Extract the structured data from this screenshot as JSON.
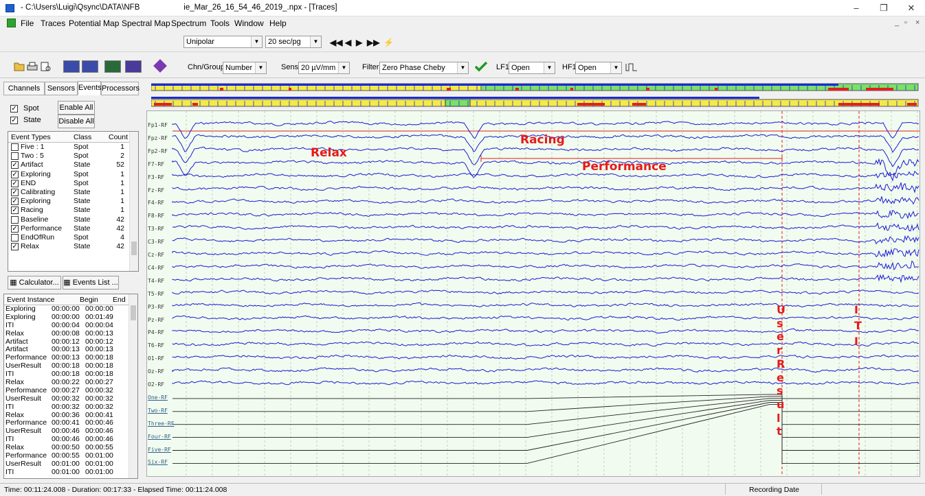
{
  "window": {
    "title": "- C:\\Users\\Luigi\\Qsync\\DATA\\NFB                    ie_Mar_26_16_54_46_2019_.npx - [Traces]",
    "controls": [
      "–",
      "❐",
      "✕"
    ]
  },
  "menu": {
    "items": [
      "File",
      "Traces",
      "Potential Map",
      "Spectral Map",
      "Spectrum",
      "Tools",
      "Window",
      "Help"
    ],
    "mdi_controls": [
      "_",
      "▫",
      "×"
    ]
  },
  "toolbar1": {
    "montage": "Unipolar",
    "page_speed": "20 sec/pg",
    "nav_buttons": [
      "◀◀",
      "◀",
      "▶",
      "▶▶",
      "⚡"
    ]
  },
  "toolbar2": {
    "chn_group_label": "Chn/Group",
    "chn_group_value": "Number",
    "sens_label": "Sens",
    "sens_value": "20 µV/mm",
    "filter_label": "Filter",
    "filter_value": "Zero Phase Cheby",
    "lf1_label": "LF1",
    "lf1_value": "Open",
    "hf1_label": "HF1",
    "hf1_value": "Open"
  },
  "panel": {
    "tabs": [
      "Channels",
      "Sensors",
      "Events",
      "Processors"
    ],
    "active_tab": "Events",
    "spot_label": "Spot",
    "state_label": "State",
    "enable_all": "Enable All",
    "disable_all": "Disable All",
    "event_types_headers": [
      "Event Types",
      "Class",
      "Count"
    ],
    "event_types": [
      {
        "name": "Five : 1",
        "cls": "Spot",
        "count": "1",
        "checked": false
      },
      {
        "name": "Two : 5",
        "cls": "Spot",
        "count": "2",
        "checked": false
      },
      {
        "name": "Artifact",
        "cls": "State",
        "count": "52",
        "checked": true
      },
      {
        "name": "Exploring",
        "cls": "Spot",
        "count": "1",
        "checked": true
      },
      {
        "name": "END",
        "cls": "Spot",
        "count": "1",
        "checked": true
      },
      {
        "name": "Calibrating",
        "cls": "State",
        "count": "1",
        "checked": true
      },
      {
        "name": "Exploring",
        "cls": "State",
        "count": "1",
        "checked": true
      },
      {
        "name": "Racing",
        "cls": "State",
        "count": "1",
        "checked": true
      },
      {
        "name": "Baseline",
        "cls": "State",
        "count": "42",
        "checked": false
      },
      {
        "name": "Performance",
        "cls": "State",
        "count": "42",
        "checked": true
      },
      {
        "name": "EndOfRun",
        "cls": "Spot",
        "count": "4",
        "checked": false
      },
      {
        "name": "Relax",
        "cls": "State",
        "count": "42",
        "checked": true
      }
    ],
    "calculator": "Calculator...",
    "events_list": "Events List ...",
    "instance_headers": [
      "Event Instance",
      "Begin",
      "End"
    ],
    "instances": [
      [
        "Exploring",
        "00:00:00",
        "00:00:00"
      ],
      [
        "Exploring",
        "00:00:00",
        "00:01:49"
      ],
      [
        "ITI",
        "00:00:04",
        "00:00:04"
      ],
      [
        "Relax",
        "00:00:08",
        "00:00:13"
      ],
      [
        "Artifact",
        "00:00:12",
        "00:00:12"
      ],
      [
        "Artifact",
        "00:00:13",
        "00:00:13"
      ],
      [
        "Performance",
        "00:00:13",
        "00:00:18"
      ],
      [
        "UserResult",
        "00:00:18",
        "00:00:18"
      ],
      [
        "ITI",
        "00:00:18",
        "00:00:18"
      ],
      [
        "Relax",
        "00:00:22",
        "00:00:27"
      ],
      [
        "Performance",
        "00:00:27",
        "00:00:32"
      ],
      [
        "UserResult",
        "00:00:32",
        "00:00:32"
      ],
      [
        "ITI",
        "00:00:32",
        "00:00:32"
      ],
      [
        "Relax",
        "00:00:36",
        "00:00:41"
      ],
      [
        "Performance",
        "00:00:41",
        "00:00:46"
      ],
      [
        "UserResult",
        "00:00:46",
        "00:00:46"
      ],
      [
        "ITI",
        "00:00:46",
        "00:00:46"
      ],
      [
        "Relax",
        "00:00:50",
        "00:00:55"
      ],
      [
        "Performance",
        "00:00:55",
        "00:01:00"
      ],
      [
        "UserResult",
        "00:01:00",
        "00:01:00"
      ],
      [
        "ITI",
        "00:01:00",
        "00:01:00"
      ]
    ]
  },
  "traces": {
    "channels": [
      "Fp1-RF",
      "Fpz-RF",
      "Fp2-RF",
      "F7-RF",
      "F3-RF",
      "Fz-RF",
      "F4-RF",
      "F8-RF",
      "T3-RF",
      "C3-RF",
      "Cz-RF",
      "C4-RF",
      "T4-RF",
      "T5-RF",
      "P3-RF",
      "Pz-RF",
      "P4-RF",
      "T6-RF",
      "O1-RF",
      "Oz-RF",
      "O2-RF",
      "One-RF",
      "Two-RF",
      "Three-RF",
      "Four-RF",
      "Five-RF",
      "Six-RF"
    ],
    "annotations": {
      "relax": "Relax",
      "racing": "Racing",
      "performance": "Performance",
      "user_result": [
        "U",
        "s",
        "e",
        "r",
        "R",
        "e",
        "s",
        "u",
        "l",
        "t"
      ],
      "iti": [
        "I",
        "T",
        "I"
      ]
    },
    "colors": {
      "eeg": "#1a1ad6",
      "marker": "#e51a1a",
      "bg": "#f1fbef"
    }
  },
  "status": {
    "text": "Time: 00:11:24.008  - Duration: 00:17:33 - Elapsed Time: 00:11:24.008",
    "recording_date": "Recording Date"
  }
}
